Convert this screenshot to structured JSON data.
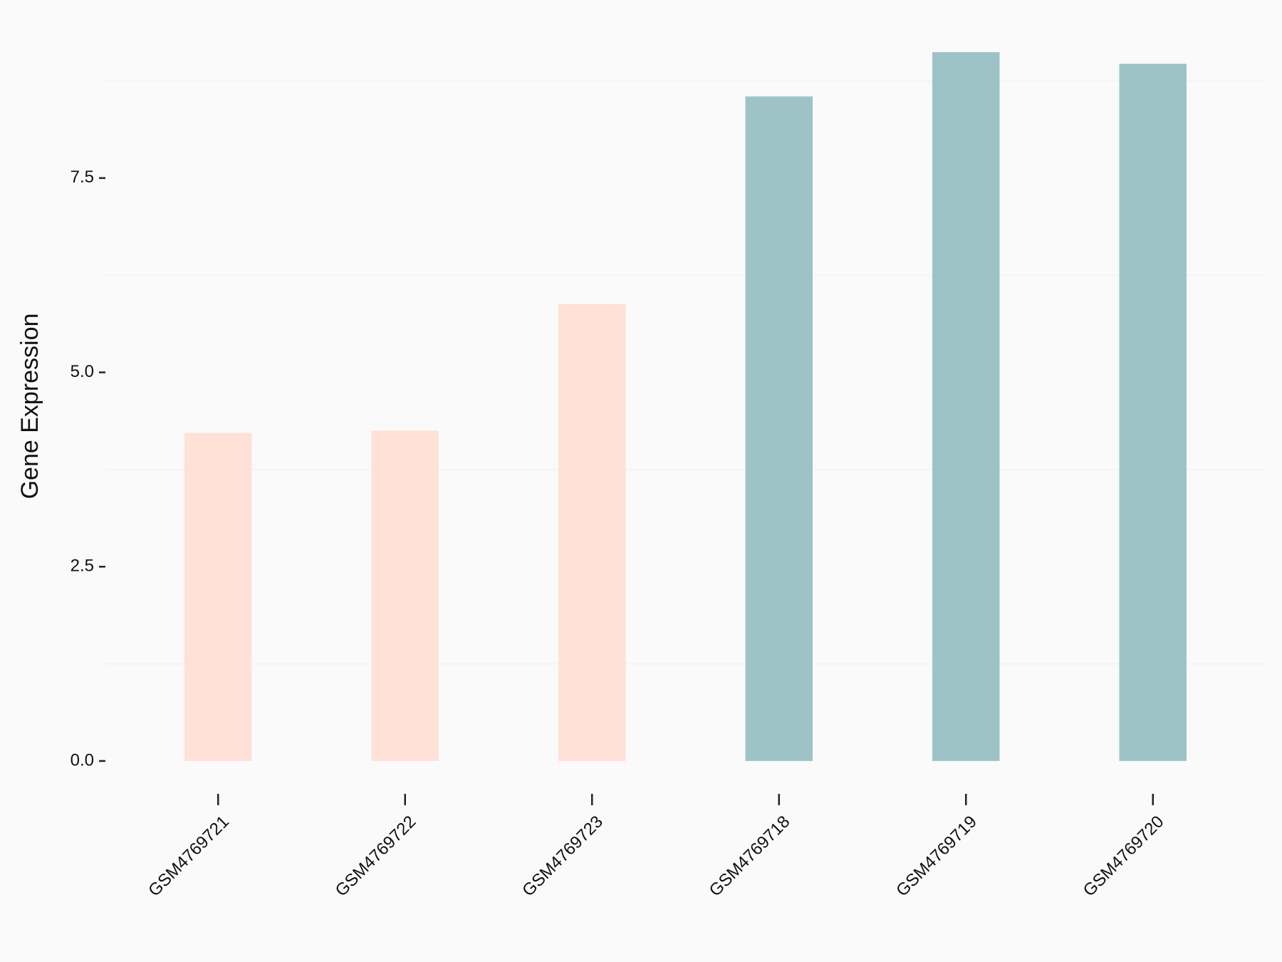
{
  "chart_data": {
    "type": "bar",
    "y_label": "Gene Expression",
    "categories": [
      "GSM4769721",
      "GSM4769722",
      "GSM4769723",
      "GSM4769718",
      "GSM4769719",
      "GSM4769720"
    ],
    "values": [
      4.22,
      4.25,
      5.88,
      8.55,
      9.12,
      8.97
    ],
    "colors": [
      "#FFE1D8",
      "#FFE1D8",
      "#FFE1D8",
      "#9DC3C7",
      "#9DC3C7",
      "#9DC3C7"
    ],
    "ylim": [
      -0.45,
      9.58
    ],
    "yticks": [
      {
        "value": 0,
        "label": "0.0"
      },
      2.5,
      {
        "value": 5,
        "label": "5.0"
      },
      7.5
    ],
    "minor_grid": [
      1.25,
      3.75,
      6.25,
      8.75
    ]
  }
}
